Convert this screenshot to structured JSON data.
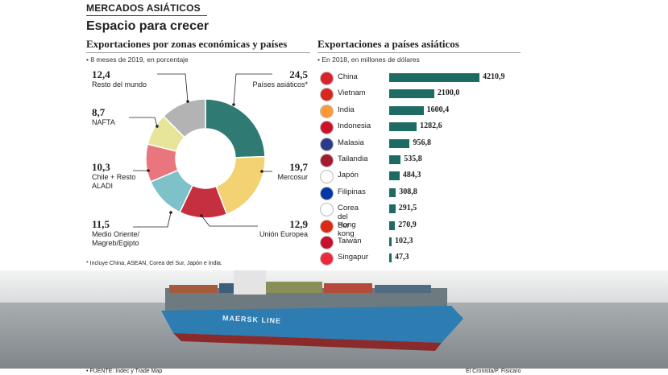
{
  "header": {
    "section": "MERCADOS ASIÁTICOS",
    "headline": "Espacio para crecer"
  },
  "left": {
    "title": "Exportaciones por zonas económicas y países",
    "note": "• 8 meses de 2019, en porcentaje",
    "footnote": "* Incluye China, ASEAN, Corea del Sur, Japón e India."
  },
  "right": {
    "title": "Exportaciones a países asiáticos",
    "note": "• En 2018, en millones de dólares"
  },
  "chart_data": [
    {
      "type": "pie",
      "title": "Exportaciones por zonas económicas y países",
      "slices": [
        {
          "label": "Países asiáticos*",
          "value": 24.5,
          "display": "24,5",
          "color": "#2f7a73"
        },
        {
          "label": "Mercosur",
          "value": 19.7,
          "display": "19,7",
          "color": "#f2d272"
        },
        {
          "label": "Unión Europea",
          "value": 12.9,
          "display": "12,9",
          "color": "#c5303f"
        },
        {
          "label": "Medio Oriente/ Magreb/Egipto",
          "value": 11.5,
          "display": "11,5",
          "color": "#7ec1c9"
        },
        {
          "label": "Chile + Resto ALADI",
          "value": 10.3,
          "display": "10,3",
          "color": "#e9767f"
        },
        {
          "label": "NAFTA",
          "value": 8.7,
          "display": "8,7",
          "color": "#e7e59a"
        },
        {
          "label": "Resto del mundo",
          "value": 12.4,
          "display": "12,4",
          "color": "#b3b3b3"
        }
      ]
    },
    {
      "type": "bar",
      "title": "Exportaciones a países asiáticos",
      "categories": [
        "China",
        "Vietnam",
        "India",
        "Indonesia",
        "Malasia",
        "Tailandia",
        "Japón",
        "Filipinas",
        "Corea del Sur",
        "Hong kong",
        "Taiwán",
        "Singapur"
      ],
      "values": [
        4210.9,
        2100.0,
        1600.4,
        1282.6,
        956.8,
        535.8,
        484.3,
        308.8,
        291.5,
        270.9,
        102.3,
        47.3
      ],
      "labels": [
        "4210,9",
        "2100,0",
        "1600,4",
        "1282,6",
        "956,8",
        "535,8",
        "484,3",
        "308,8",
        "291,5",
        "270,9",
        "102,3",
        "47,3"
      ],
      "color": "#1e6b64"
    }
  ],
  "ship": {
    "hull_text": "MAERSK LINE"
  },
  "footer": {
    "source": "• FUENTE: Indec y Trade Map",
    "credit": "El Cronista/P. Fisicaro"
  }
}
